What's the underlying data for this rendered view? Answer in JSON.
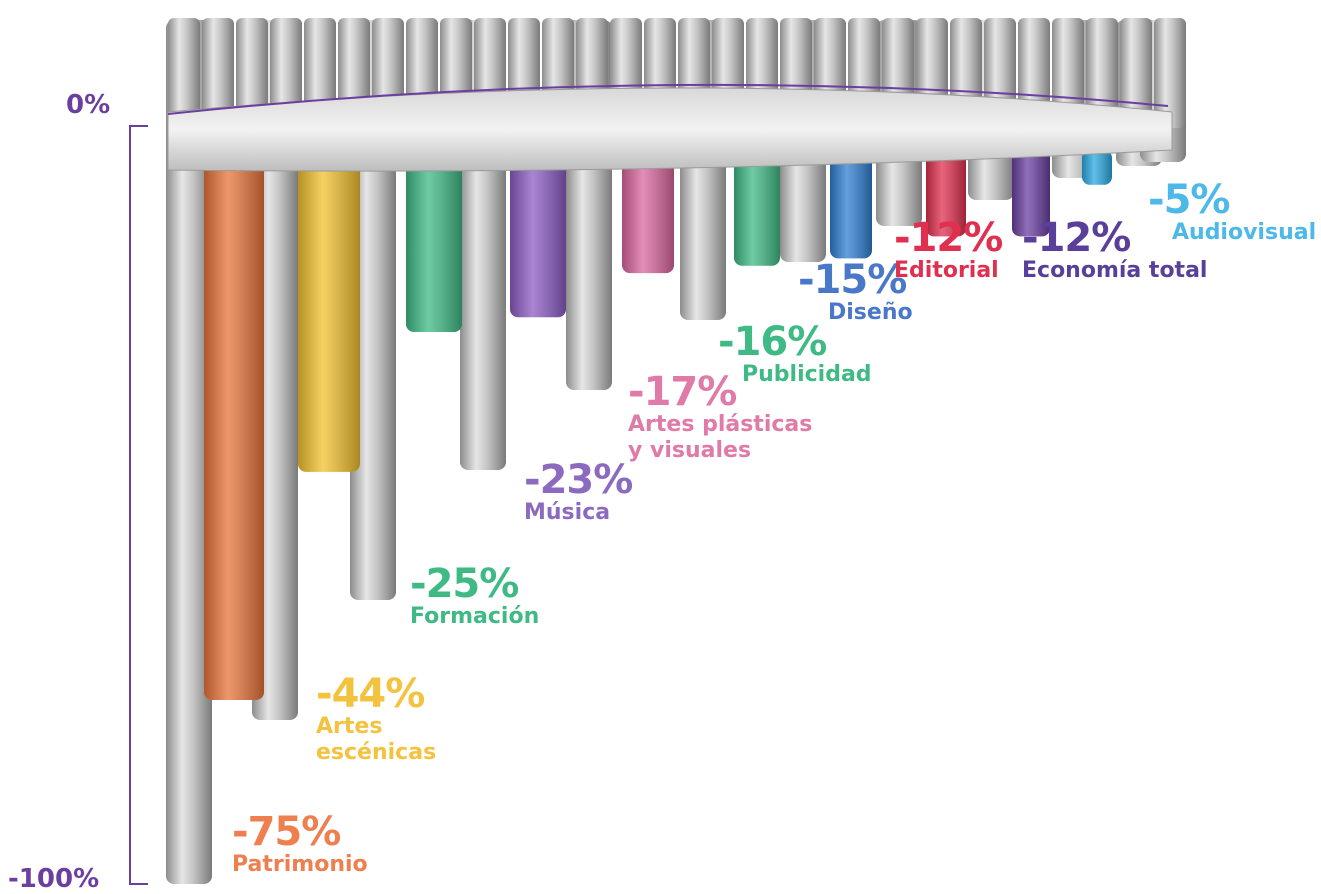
{
  "axis": {
    "top_label": "0%",
    "bottom_label": "-100%",
    "min": -100,
    "max": 0,
    "axis_color": "#6a3fa0"
  },
  "chart_data": {
    "type": "bar",
    "title": "",
    "xlabel": "",
    "ylabel": "",
    "ylim": [
      -100,
      0
    ],
    "categories": [
      "Patrimonio",
      "Artes escénicas",
      "Formación",
      "Música",
      "Artes plásticas y visuales",
      "Publicidad",
      "Diseño",
      "Editorial",
      "Economía total",
      "Audiovisual"
    ],
    "values": [
      -75,
      -44,
      -25,
      -23,
      -17,
      -16,
      -15,
      -12,
      -12,
      -5
    ],
    "value_labels": [
      "-75%",
      "-44%",
      "-25%",
      "-23%",
      "-17%",
      "-16%",
      "-15%",
      "-12%",
      "-12%",
      "-5%"
    ],
    "category_labels": [
      "Patrimonio",
      "Artes\nescénicas",
      "Formación",
      "Música",
      "Artes plásticas\ny visuales",
      "Publicidad",
      "Diseño",
      "Editorial",
      "Economía total",
      "Audiovisual"
    ],
    "colors": [
      "#e8743b",
      "#f2c12e",
      "#3fba85",
      "#8c5cc4",
      "#d9679f",
      "#3fba85",
      "#2f7fd0",
      "#e0304f",
      "#6a3fa0",
      "#2aa9e0"
    ],
    "label_colors": [
      "#ee7f4e",
      "#f3c33f",
      "#3fba85",
      "#8c6ac0",
      "#e07aa8",
      "#3fba85",
      "#4a78c8",
      "#e0304f",
      "#5a3f9a",
      "#4cb9e8"
    ]
  }
}
